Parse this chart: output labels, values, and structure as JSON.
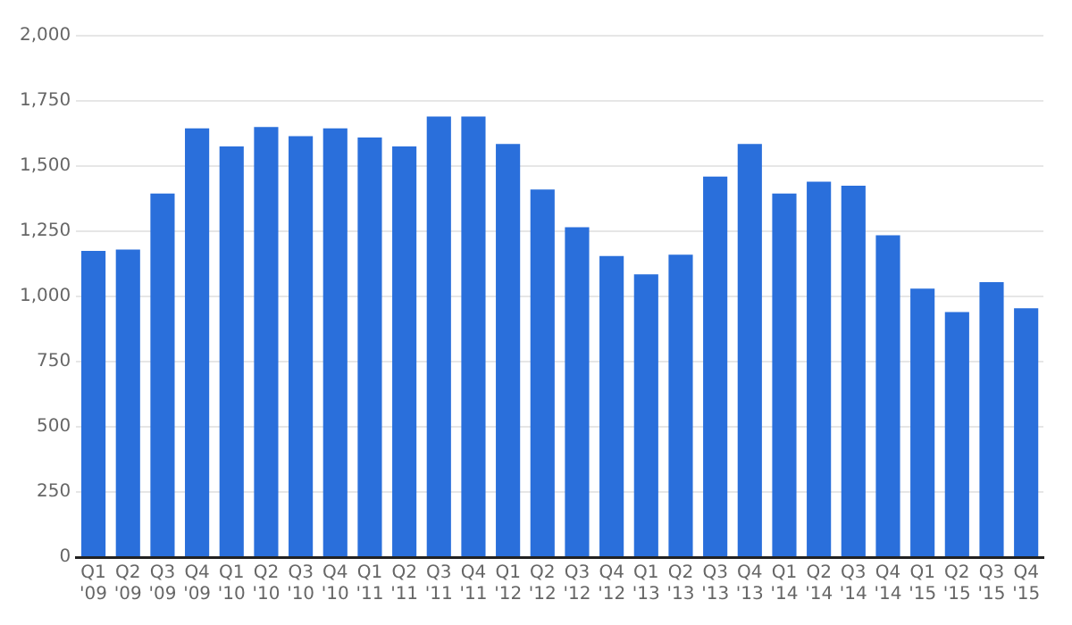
{
  "chart_data": {
    "type": "bar",
    "categories": [
      "Q1 '09",
      "Q2 '09",
      "Q3 '09",
      "Q4 '09",
      "Q1 '10",
      "Q2 '10",
      "Q3 '10",
      "Q4 '10",
      "Q1 '11",
      "Q2 '11",
      "Q3 '11",
      "Q4 '11",
      "Q1 '12",
      "Q2 '12",
      "Q3 '12",
      "Q4 '12",
      "Q1 '13",
      "Q2 '13",
      "Q3 '13",
      "Q4 '13",
      "Q1 '14",
      "Q2 '14",
      "Q3 '14",
      "Q4 '14",
      "Q1 '15",
      "Q2 '15",
      "Q3 '15",
      "Q4 '15"
    ],
    "values": [
      1175,
      1180,
      1395,
      1645,
      1575,
      1650,
      1615,
      1645,
      1610,
      1575,
      1690,
      1690,
      1585,
      1410,
      1265,
      1155,
      1085,
      1160,
      1460,
      1585,
      1395,
      1440,
      1425,
      1235,
      1030,
      940,
      1055,
      955
    ],
    "color": "#2a6fdb",
    "ylim": [
      0,
      2000
    ],
    "yticks": [
      {
        "value": 0,
        "label": "0"
      },
      {
        "value": 250,
        "label": "250"
      },
      {
        "value": 500,
        "label": "500"
      },
      {
        "value": 750,
        "label": "750"
      },
      {
        "value": 1000,
        "label": "1,000"
      },
      {
        "value": 1250,
        "label": "1,250"
      },
      {
        "value": 1500,
        "label": "1,500"
      },
      {
        "value": 1750,
        "label": "1,750"
      },
      {
        "value": 2000,
        "label": "2,000"
      }
    ],
    "grid": "y",
    "legend": false
  }
}
